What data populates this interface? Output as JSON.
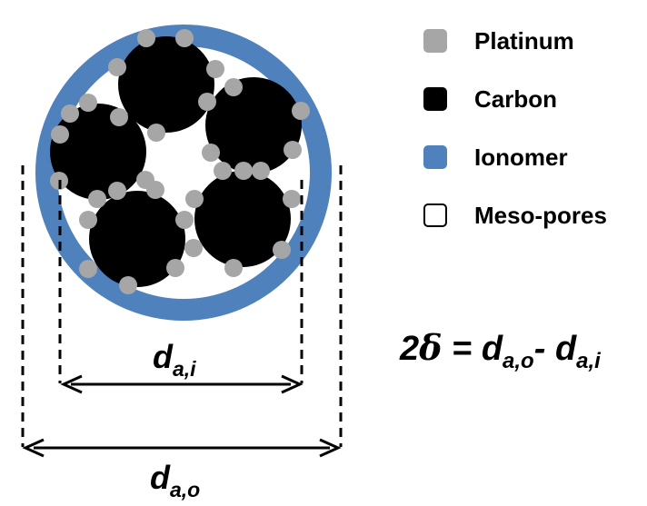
{
  "colors": {
    "platinum": "#a6a6a6",
    "carbon": "#000000",
    "ionomer": "#4f81bd",
    "mesopores": "#ffffff"
  },
  "legend": [
    {
      "label": "Platinum",
      "color": "#a6a6a6"
    },
    {
      "label": "Carbon",
      "color": "#000000"
    },
    {
      "label": "Ionomer",
      "color": "#4f81bd"
    },
    {
      "label": "Meso-pores",
      "color": "#ffffff"
    }
  ],
  "dimensions": {
    "inner": {
      "symbol": "d",
      "subscript": "a,i"
    },
    "outer": {
      "symbol": "d",
      "subscript": "a,o"
    }
  },
  "equation": {
    "lhs_number": "2",
    "lhs_symbol": "δ",
    "equals": " = ",
    "term1": "d",
    "term1_sub": "a,o",
    "minus": "- ",
    "term2": "d",
    "term2_sub": "a,i"
  }
}
